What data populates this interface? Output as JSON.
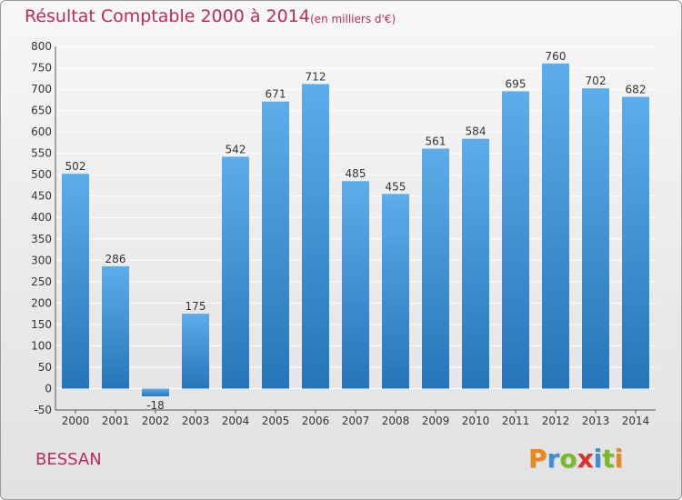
{
  "title": "Résultat Comptable 2000 à 2014",
  "subtitle": "(en milliers d'€)",
  "commune": "BESSAN",
  "logo": {
    "letters": [
      "P",
      "r",
      "o",
      "x",
      "i",
      "t",
      "i"
    ],
    "colors": [
      "#e8891a",
      "#3b8fd6",
      "#7ab928",
      "#e02f2f",
      "#3b8fd6",
      "#7ab928",
      "#e8891a"
    ]
  },
  "colors": {
    "title": "#c0285d",
    "bar_top": "#5dadea",
    "bar_bottom": "#2675b8",
    "grid": "#ffffff"
  },
  "chart_data": {
    "type": "bar",
    "categories": [
      "2000",
      "2001",
      "2002",
      "2003",
      "2004",
      "2005",
      "2006",
      "2007",
      "2008",
      "2009",
      "2010",
      "2011",
      "2012",
      "2013",
      "2014"
    ],
    "values": [
      502,
      286,
      -18,
      175,
      542,
      671,
      712,
      485,
      455,
      561,
      584,
      695,
      760,
      702,
      682
    ],
    "value_labels": [
      "502",
      "286",
      "-18",
      "175",
      "542",
      "671",
      "712",
      "485",
      "455",
      "561",
      "584",
      "695",
      "760",
      "702",
      "682"
    ],
    "yticks": [
      -50,
      0,
      50,
      100,
      150,
      200,
      250,
      300,
      350,
      400,
      450,
      500,
      550,
      600,
      650,
      700,
      750,
      800
    ],
    "ylim": [
      -50,
      800
    ],
    "grid": true,
    "xlabel": "",
    "ylabel": ""
  }
}
